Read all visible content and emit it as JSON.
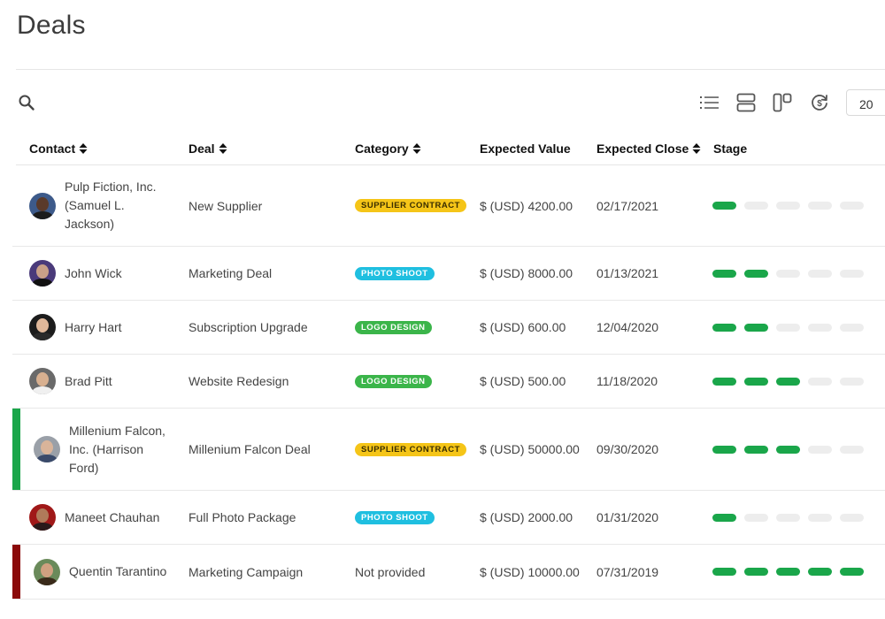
{
  "page": {
    "title": "Deals"
  },
  "toolbar": {
    "search_icon": "search-icon",
    "views": [
      "list-view-icon",
      "card-view-icon",
      "board-view-icon",
      "currency-refresh-icon"
    ],
    "page_size": "20"
  },
  "table": {
    "columns": [
      {
        "label": "Contact",
        "sortable": true
      },
      {
        "label": "Deal",
        "sortable": true
      },
      {
        "label": "Category",
        "sortable": true
      },
      {
        "label": "Expected Value",
        "sortable": false
      },
      {
        "label": "Expected Close",
        "sortable": true
      },
      {
        "label": "Stage",
        "sortable": false
      }
    ],
    "stage_total": 5,
    "rows": [
      {
        "contact": "Pulp Fiction, Inc. (Samuel L. Jackson)",
        "deal": "New Supplier",
        "category": "SUPPLIER CONTRACT",
        "category_color": "#f5c518",
        "category_text_color": "#3a2e00",
        "value": "$ (USD) 4200.00",
        "close": "02/17/2021",
        "stage": 1,
        "accent": null,
        "avatar_skin": "#5a3a2a",
        "avatar_bg": "#3d5a8a",
        "avatar_shirt": "#1c1c1c"
      },
      {
        "contact": "John Wick",
        "deal": "Marketing Deal",
        "category": "PHOTO SHOOT",
        "category_color": "#1fbfe0",
        "category_text_color": "#ffffff",
        "value": "$ (USD) 8000.00",
        "close": "01/13/2021",
        "stage": 2,
        "accent": null,
        "avatar_skin": "#c9a088",
        "avatar_bg": "#4a3a7a",
        "avatar_shirt": "#111111"
      },
      {
        "contact": "Harry Hart",
        "deal": "Subscription Upgrade",
        "category": "LOGO DESIGN",
        "category_color": "#3bb54a",
        "category_text_color": "#ffffff",
        "value": "$ (USD) 600.00",
        "close": "12/04/2020",
        "stage": 2,
        "accent": null,
        "avatar_skin": "#e0b89a",
        "avatar_bg": "#1c1c1c",
        "avatar_shirt": "#2a2a2a"
      },
      {
        "contact": "Brad Pitt",
        "deal": "Website Redesign",
        "category": "LOGO DESIGN",
        "category_color": "#3bb54a",
        "category_text_color": "#ffffff",
        "value": "$ (USD) 500.00",
        "close": "11/18/2020",
        "stage": 3,
        "accent": null,
        "avatar_skin": "#d8b090",
        "avatar_bg": "#6a6a6a",
        "avatar_shirt": "#f0f0f0"
      },
      {
        "contact": "Millenium Falcon, Inc. (Harrison Ford)",
        "deal": "Millenium Falcon Deal",
        "category": "SUPPLIER CONTRACT",
        "category_color": "#f5c518",
        "category_text_color": "#3a2e00",
        "value": "$ (USD) 50000.00",
        "close": "09/30/2020",
        "stage": 3,
        "accent": "#1aa64a",
        "avatar_skin": "#d9b49a",
        "avatar_bg": "#9aa0a8",
        "avatar_shirt": "#3a4a6a"
      },
      {
        "contact": "Maneet Chauhan",
        "deal": "Full Photo Package",
        "category": "PHOTO SHOOT",
        "category_color": "#1fbfe0",
        "category_text_color": "#ffffff",
        "value": "$ (USD) 2000.00",
        "close": "01/31/2020",
        "stage": 1,
        "accent": null,
        "avatar_skin": "#b07a5a",
        "avatar_bg": "#a01818",
        "avatar_shirt": "#2a1a1a"
      },
      {
        "contact": "Quentin Tarantino",
        "deal": "Marketing Campaign",
        "category": "Not provided",
        "category_color": null,
        "category_text_color": null,
        "value": "$ (USD) 10000.00",
        "close": "07/31/2019",
        "stage": 5,
        "accent": "#8b0a0a",
        "avatar_skin": "#d0a080",
        "avatar_bg": "#6a8a5a",
        "avatar_shirt": "#3a2a1a"
      }
    ]
  }
}
